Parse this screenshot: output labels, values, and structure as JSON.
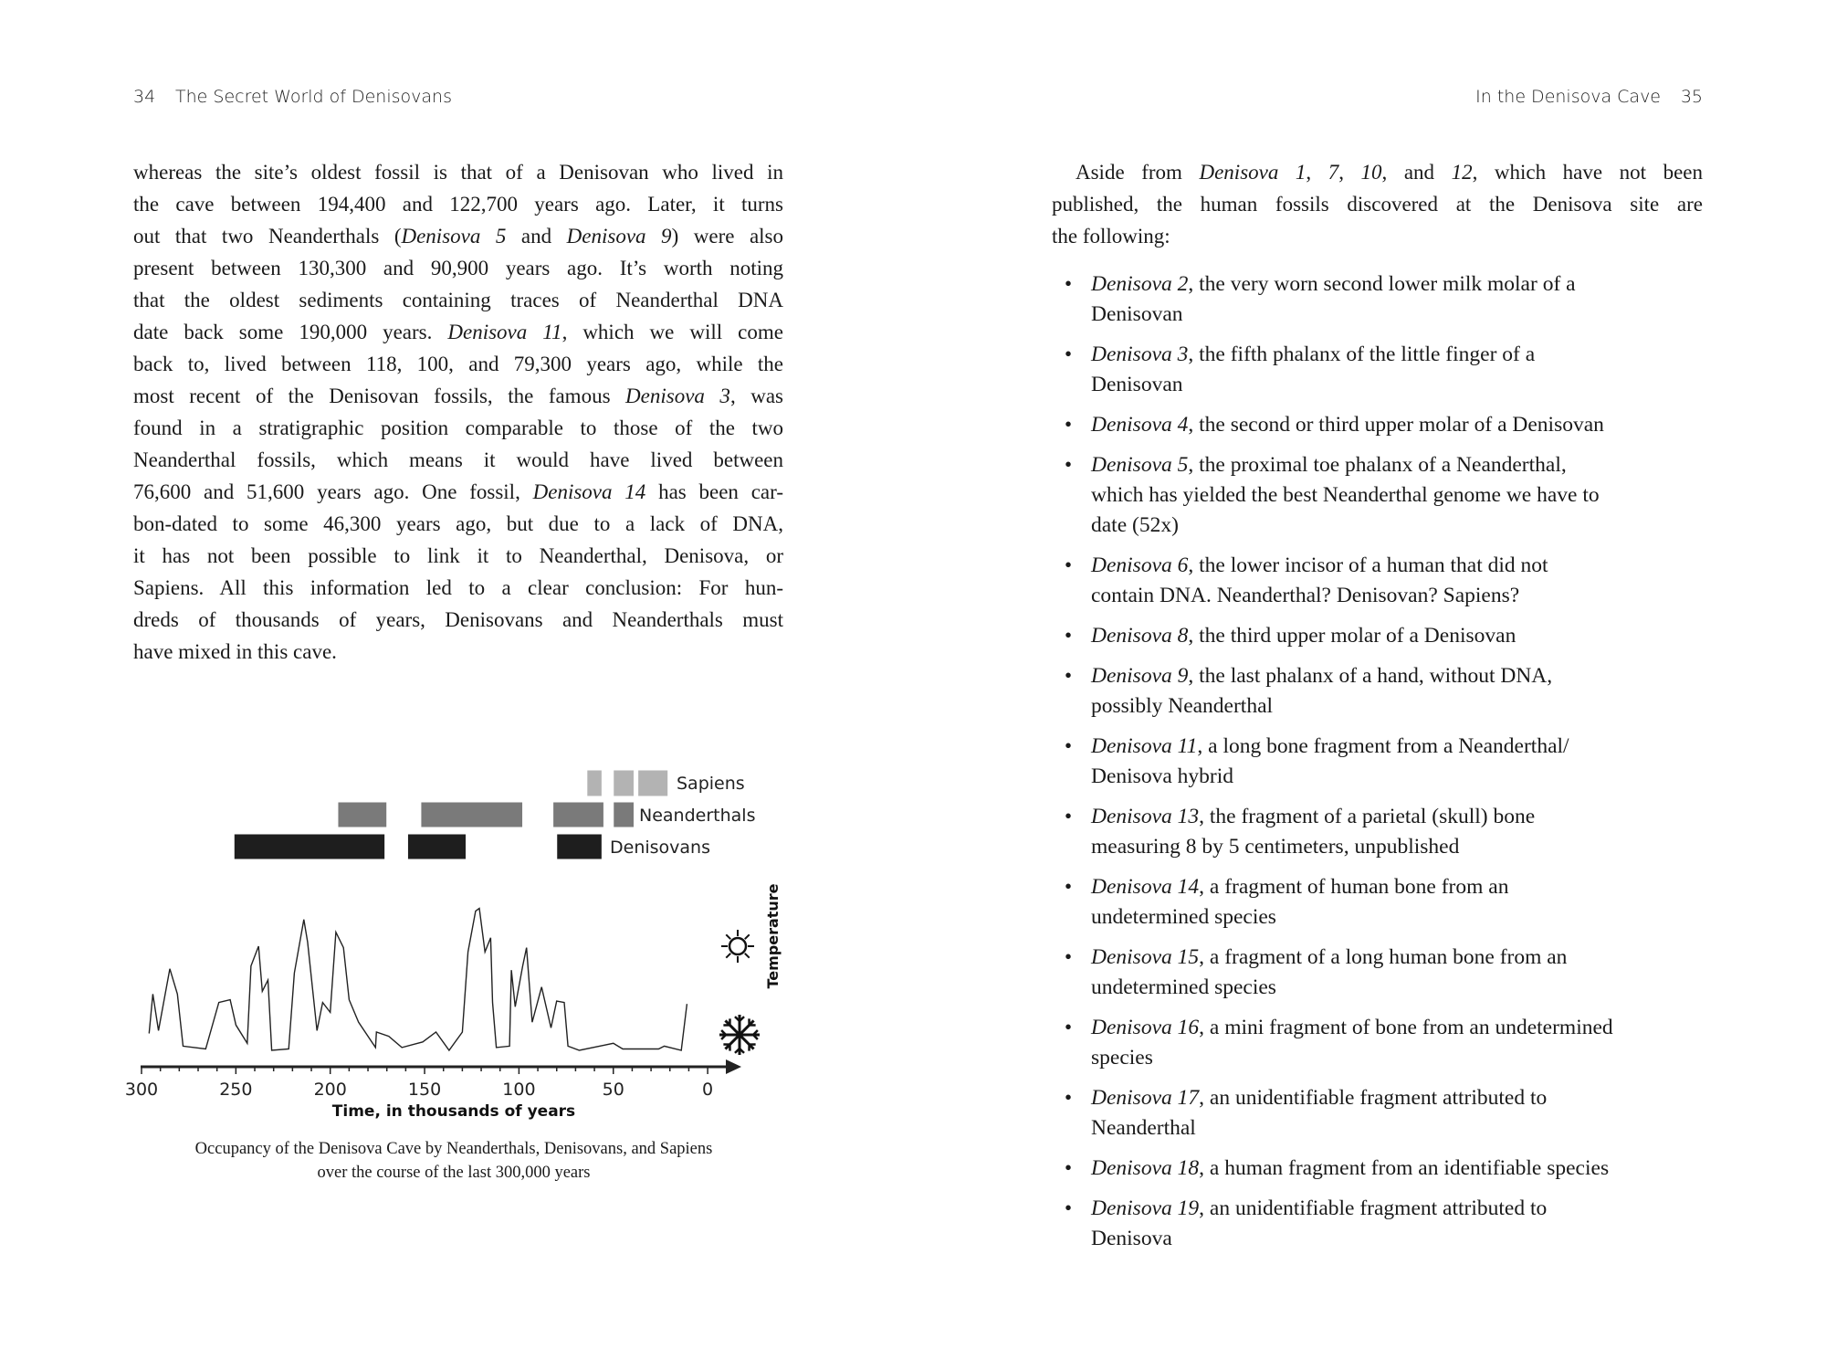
{
  "left_page": {
    "page_number": "34",
    "running_head": "The Secret World of Denisovans",
    "paragraph_lines": [
      [
        {
          "t": "whereas the site’s oldest fossil is that of a Denisovan who lived in"
        }
      ],
      [
        {
          "t": "the cave between 194,400 and 122,700 years ago. Later, it turns"
        }
      ],
      [
        {
          "t": "out that two Neanderthals ("
        },
        {
          "t": "Denisova 5",
          "i": true
        },
        {
          "t": " and "
        },
        {
          "t": "Denisova 9",
          "i": true
        },
        {
          "t": ") were also"
        }
      ],
      [
        {
          "t": "present between 130,300 and 90,900 years ago. It’s worth noting"
        }
      ],
      [
        {
          "t": "that the oldest sediments containing traces of Neanderthal DNA"
        }
      ],
      [
        {
          "t": "date back some 190,000 years. "
        },
        {
          "t": "Denisova 11",
          "i": true
        },
        {
          "t": ", which we will come"
        }
      ],
      [
        {
          "t": "back to, lived between 118, 100, and 79,300 years ago, while the"
        }
      ],
      [
        {
          "t": "most recent of the Denisovan fossils, the famous "
        },
        {
          "t": "Denisova 3",
          "i": true
        },
        {
          "t": ", was"
        }
      ],
      [
        {
          "t": "found in a stratigraphic position comparable to those of the two"
        }
      ],
      [
        {
          "t": "Neanderthal fossils, which means it would have lived between"
        }
      ],
      [
        {
          "t": "76,600 and 51,600 years ago. One fossil, "
        },
        {
          "t": "Denisova 14",
          "i": true
        },
        {
          "t": " has been car-"
        }
      ],
      [
        {
          "t": "bon-dated to some 46,300 years ago, but due to a lack of DNA,"
        }
      ],
      [
        {
          "t": "it has not been possible to link it to Neanderthal, Denisova, or"
        }
      ],
      [
        {
          "t": "Sapiens. All this information led to a clear conclusion: For hun-"
        }
      ],
      [
        {
          "t": "dreds of thousands of years, Denisovans and Neanderthals must"
        }
      ],
      [
        {
          "t": "have mixed in this cave."
        }
      ]
    ],
    "caption_lines": [
      "Occupancy of the Denisova Cave by Neanderthals, Denisovans, and Sapiens",
      "over the course of the last 300,000 years"
    ]
  },
  "right_page": {
    "page_number": "35",
    "running_head": "In the Denisova Cave",
    "intro_lines": [
      [
        {
          "t": "Aside from "
        },
        {
          "t": "Denisova 1",
          "i": true
        },
        {
          "t": ", "
        },
        {
          "t": "7",
          "i": true
        },
        {
          "t": ", "
        },
        {
          "t": "10",
          "i": true
        },
        {
          "t": ", and "
        },
        {
          "t": "12",
          "i": true
        },
        {
          "t": ", which have not been"
        }
      ],
      [
        {
          "t": "published, the human fossils discovered at the Denisova site are"
        }
      ],
      [
        {
          "t": "the following:"
        }
      ]
    ],
    "bullet_char": "•",
    "items": [
      {
        "name": "Denisova 2",
        "lines": [
          ", the very worn second lower milk molar of a",
          "Denisovan"
        ]
      },
      {
        "name": "Denisova 3",
        "lines": [
          ", the fifth phalanx of the little finger of a",
          "Denisovan"
        ]
      },
      {
        "name": "Denisova 4",
        "lines": [
          ", the second or third upper molar of a Denisovan"
        ]
      },
      {
        "name": "Denisova 5",
        "lines": [
          ", the proximal toe phalanx of a Neanderthal,",
          "which has yielded the best Neanderthal genome we have to",
          "date (52x)"
        ]
      },
      {
        "name": "Denisova 6",
        "lines": [
          ", the lower incisor of a human that did not",
          "contain DNA. Neanderthal? Denisovan? Sapiens?"
        ]
      },
      {
        "name": "Denisova 8",
        "lines": [
          ", the third upper molar of a Denisovan"
        ]
      },
      {
        "name": "Denisova 9",
        "lines": [
          ", the last phalanx of a hand, without DNA,",
          "possibly Neanderthal"
        ]
      },
      {
        "name": "Denisova 11",
        "lines": [
          ", a long bone fragment from a Neanderthal/",
          "Denisova hybrid"
        ]
      },
      {
        "name": "Denisova 13",
        "lines": [
          ", the fragment of a parietal (skull) bone",
          "measuring 8 by 5 centimeters, unpublished"
        ]
      },
      {
        "name": "Denisova 14",
        "lines": [
          ", a fragment of human bone from an",
          "undetermined species"
        ]
      },
      {
        "name": "Denisova 15",
        "lines": [
          ", a fragment of a long human bone from an",
          "undetermined species"
        ]
      },
      {
        "name": "Denisova 16",
        "lines": [
          ", a mini fragment of bone from an undetermined",
          "species"
        ]
      },
      {
        "name": "Denisova 17",
        "lines": [
          ", an unidentifiable fragment attributed to",
          "Neanderthal"
        ]
      },
      {
        "name": "Denisova 18",
        "lines": [
          ", a human fragment from an identifiable species"
        ]
      },
      {
        "name": "Denisova 19",
        "lines": [
          ", an unidentifiable fragment attributed to",
          "Denisova"
        ]
      }
    ]
  },
  "chart_data": {
    "type": "timeline+line",
    "xlabel": "Time, in thousands of years",
    "ylabel": "Temperature",
    "xlim": [
      300,
      0
    ],
    "x_reversed": true,
    "x_ticks": [
      300,
      250,
      200,
      150,
      100,
      50,
      0
    ],
    "icons": {
      "warm": "sun-icon",
      "cold": "snowflake-icon"
    },
    "occupancy": [
      {
        "name": "Sapiens",
        "color": "#b3b3b3",
        "intervals": [
          [
            64,
            56
          ],
          [
            50,
            39
          ],
          [
            37,
            21
          ]
        ]
      },
      {
        "name": "Neanderthals",
        "color": "#7a7a7a",
        "intervals": [
          [
            196,
            170
          ],
          [
            152,
            98
          ],
          [
            82,
            55
          ],
          [
            50,
            39
          ]
        ]
      },
      {
        "name": "Denisovans",
        "color": "#1e1e1e",
        "intervals": [
          [
            251,
            171
          ],
          [
            159,
            128
          ],
          [
            80,
            56
          ]
        ]
      }
    ],
    "temperature_relative": [
      [
        296,
        1.2
      ],
      [
        294,
        4
      ],
      [
        291,
        1.4
      ],
      [
        285,
        5.8
      ],
      [
        281,
        4
      ],
      [
        278,
        0.3
      ],
      [
        266,
        0.1
      ],
      [
        259,
        3.4
      ],
      [
        253,
        3.6
      ],
      [
        250,
        1.8
      ],
      [
        244,
        0.5
      ],
      [
        242,
        6
      ],
      [
        238,
        7.4
      ],
      [
        236,
        4.2
      ],
      [
        233,
        5
      ],
      [
        231,
        0
      ],
      [
        222,
        0.1
      ],
      [
        219,
        5.5
      ],
      [
        214,
        9.3
      ],
      [
        212,
        7.7
      ],
      [
        207,
        1.4
      ],
      [
        204,
        3.4
      ],
      [
        200,
        2.7
      ],
      [
        197,
        8.4
      ],
      [
        193,
        7.3
      ],
      [
        190,
        3.6
      ],
      [
        185,
        2
      ],
      [
        176,
        0.2
      ],
      [
        175.5,
        1.3
      ],
      [
        169,
        1
      ],
      [
        162,
        0.2
      ],
      [
        151,
        0.6
      ],
      [
        144,
        1.3
      ],
      [
        137,
        0
      ],
      [
        130,
        1.3
      ],
      [
        127,
        7
      ],
      [
        123,
        9.9
      ],
      [
        121,
        10.1
      ],
      [
        118,
        7
      ],
      [
        115,
        8
      ],
      [
        114,
        3.4
      ],
      [
        112,
        0.2
      ],
      [
        105,
        0.3
      ],
      [
        104,
        5.7
      ],
      [
        102,
        3.1
      ],
      [
        98,
        6
      ],
      [
        96,
        7.3
      ],
      [
        93,
        2
      ],
      [
        88,
        4.5
      ],
      [
        83,
        1.6
      ],
      [
        80,
        3.5
      ],
      [
        76,
        3.4
      ],
      [
        74,
        0.3
      ],
      [
        68,
        0
      ],
      [
        50,
        0.5
      ],
      [
        45,
        0.1
      ],
      [
        26,
        0.1
      ],
      [
        23,
        0.3
      ],
      [
        14,
        0
      ],
      [
        11,
        3.3
      ]
    ]
  }
}
